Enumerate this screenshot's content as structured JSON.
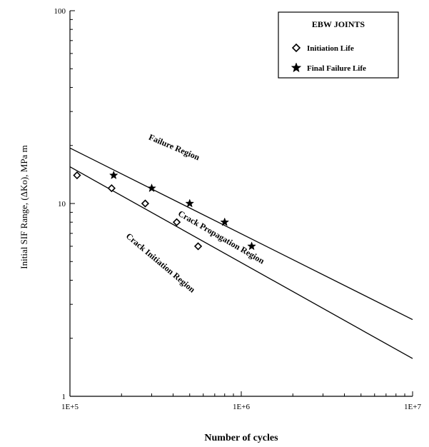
{
  "chart_data": {
    "type": "scatter",
    "x_scale": "log",
    "y_scale": "log",
    "xlim": [
      100000,
      10000000
    ],
    "ylim": [
      1,
      100
    ],
    "xlabel": "Number of cycles",
    "ylabel": "Initial SIF Range, (ΔKo), MPa m",
    "x_ticks": [
      {
        "value": 100000,
        "label": "1E+5"
      },
      {
        "value": 1000000,
        "label": "1E+6"
      },
      {
        "value": 10000000,
        "label": "1E+7"
      }
    ],
    "y_ticks": [
      {
        "value": 1,
        "label": "1"
      },
      {
        "value": 10,
        "label": "10"
      },
      {
        "value": 100,
        "label": "100"
      }
    ],
    "grid": false,
    "legend": {
      "title": "EBW JOINTS",
      "position": "top-right",
      "entries": [
        "Initiation Life",
        "Final Failure Life"
      ]
    },
    "series": [
      {
        "name": "Initiation Life",
        "marker": "diamond",
        "points": [
          {
            "x": 110000,
            "y": 14
          },
          {
            "x": 175000,
            "y": 12
          },
          {
            "x": 275000,
            "y": 10
          },
          {
            "x": 420000,
            "y": 8
          },
          {
            "x": 560000,
            "y": 6
          }
        ]
      },
      {
        "name": "Final Failure Life",
        "marker": "star",
        "points": [
          {
            "x": 180000,
            "y": 14
          },
          {
            "x": 300000,
            "y": 12
          },
          {
            "x": 500000,
            "y": 10
          },
          {
            "x": 800000,
            "y": 8
          },
          {
            "x": 1150000,
            "y": 6
          }
        ]
      }
    ],
    "lines": [
      {
        "from": {
          "x": 100000,
          "y": 19.4
        },
        "to": {
          "x": 10000000,
          "y": 2.5
        }
      },
      {
        "from": {
          "x": 100000,
          "y": 15.5
        },
        "to": {
          "x": 10000000,
          "y": 1.57
        }
      }
    ],
    "annotations": [
      {
        "text": "Failure Region",
        "x": 400000,
        "y": 19,
        "rotation": 23
      },
      {
        "text": "Crack Propagation Region",
        "x": 750000,
        "y": 6.5,
        "rotation": 30
      },
      {
        "text": "Crack Initiation Region",
        "x": 330000,
        "y": 4.8,
        "rotation": 40
      }
    ]
  }
}
